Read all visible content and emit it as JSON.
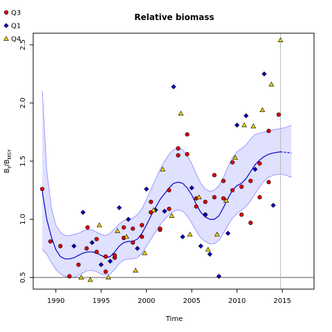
{
  "chart_data": {
    "type": "scatter",
    "title": "Relative biomass",
    "xlabel": "Time",
    "ylabel_main": "B",
    "ylabel_sub1": "t",
    "ylabel_sep": "/B",
    "ylabel_sub2": "MSY",
    "xlim": [
      1987.5,
      2018.5
    ],
    "ylim": [
      0.4,
      2.6
    ],
    "xticks": [
      1990,
      1995,
      2000,
      2005,
      2010,
      2015
    ],
    "yticks": [
      0.5,
      1.0,
      1.5,
      2.0,
      2.5
    ],
    "ytick_labels": [
      "0.5",
      "1.0",
      "1.5",
      "2.0",
      "2.5"
    ],
    "reference_line_y": 0.5,
    "vertical_line_x": 2014.8,
    "grid": false,
    "legend_position": "top-left",
    "colors": {
      "Q3": "#dd0000",
      "Q1": "#0000cc",
      "Q4": "#e8d000",
      "fit_line": "#0000cc",
      "band_fill": "#ccccff",
      "band_edge": "#9999ff",
      "reference": "#555555",
      "vertical": "#bbbbbb"
    },
    "series": [
      {
        "name": "Q3",
        "marker": "circle",
        "x": [
          1988.5,
          1989.4,
          1990.5,
          1991.5,
          1992.5,
          1993.4,
          1994.5,
          1995.5,
          1996.5,
          1997.5,
          1998.5,
          1999.5,
          2000.5,
          2001.5,
          2002.5,
          2003.5,
          2004.5,
          2005.5,
          2006.5,
          2007.5,
          2008.5,
          2009.5,
          2010.5,
          2011.5,
          2012.5,
          2013.5,
          2014.6,
          2013.5,
          2012.5,
          2011.5,
          2010.5,
          2009.5,
          2008.5,
          2007.5,
          2006.5,
          2005.5,
          2004.5,
          2003.5,
          2002.5,
          2001.5,
          2000.5,
          1999.5,
          1998.5,
          1997.5,
          1996.5,
          1995.5,
          1994.5,
          1993.5
        ],
        "y": [
          1.26,
          0.81,
          0.77,
          0.51,
          0.61,
          0.75,
          0.72,
          0.55,
          0.67,
          0.93,
          0.8,
          0.85,
          1.06,
          0.91,
          1.09,
          1.61,
          1.73,
          1.11,
          1.15,
          1.38,
          1.33,
          1.49,
          1.28,
          1.33,
          1.48,
          1.76,
          1.9,
          1.32,
          1.19,
          0.97,
          1.04,
          1.25,
          1.18,
          1.19,
          1.04,
          1.18,
          1.56,
          1.55,
          1.25,
          0.92,
          1.15,
          0.95,
          0.92,
          0.84,
          0.69,
          0.68,
          0.83,
          0.93
        ]
      },
      {
        "name": "Q1",
        "marker": "diamond",
        "x": [
          1992.0,
          1993.0,
          1994.0,
          1995.0,
          1996.0,
          1997.0,
          1998.0,
          1999.0,
          2000.0,
          2001.0,
          2002.0,
          2003.0,
          2004.0,
          2005.0,
          2006.0,
          2007.0,
          2008.0,
          2009.0,
          2010.0,
          2011.0,
          2012.0,
          2013.0,
          2014.0,
          2006.5,
          2001.0
        ],
        "y": [
          0.77,
          1.06,
          0.8,
          0.61,
          0.64,
          1.1,
          1.0,
          0.75,
          1.26,
          1.08,
          1.07,
          2.14,
          0.85,
          1.27,
          0.77,
          0.7,
          0.51,
          0.88,
          1.81,
          1.89,
          1.43,
          2.25,
          1.12,
          1.04,
          1.08
        ]
      },
      {
        "name": "Q4",
        "marker": "triangle",
        "x": [
          1992.8,
          1993.8,
          1994.8,
          1995.8,
          1996.8,
          1997.8,
          1998.8,
          1999.8,
          2000.8,
          2001.8,
          2002.8,
          2003.8,
          2004.8,
          2005.8,
          2006.8,
          2007.8,
          2008.8,
          2009.8,
          2010.8,
          2011.8,
          2012.8,
          2013.8,
          2014.8
        ],
        "y": [
          0.5,
          0.48,
          0.95,
          0.5,
          0.9,
          0.85,
          0.56,
          0.71,
          1.08,
          1.43,
          1.03,
          1.91,
          0.87,
          1.19,
          0.74,
          0.87,
          1.16,
          1.53,
          1.81,
          1.8,
          1.94,
          2.16,
          2.54
        ]
      }
    ],
    "fit": {
      "x": [
        1988.5,
        1989.0,
        1989.5,
        1990.0,
        1990.5,
        1991.0,
        1991.5,
        1992.0,
        1992.5,
        1993.0,
        1993.5,
        1994.0,
        1994.5,
        1995.0,
        1995.5,
        1996.0,
        1996.5,
        1997.0,
        1997.5,
        1998.0,
        1998.5,
        1999.0,
        1999.5,
        2000.0,
        2000.5,
        2001.0,
        2001.5,
        2002.0,
        2002.5,
        2003.0,
        2003.5,
        2004.0,
        2004.5,
        2005.0,
        2005.5,
        2006.0,
        2006.5,
        2007.0,
        2007.5,
        2008.0,
        2008.5,
        2009.0,
        2009.5,
        2010.0,
        2010.5,
        2011.0,
        2011.5,
        2012.0,
        2012.5,
        2013.0,
        2013.5,
        2014.0,
        2014.8
      ],
      "y": [
        1.24,
        1.0,
        0.85,
        0.74,
        0.68,
        0.66,
        0.66,
        0.67,
        0.69,
        0.71,
        0.72,
        0.72,
        0.71,
        0.69,
        0.67,
        0.68,
        0.72,
        0.77,
        0.8,
        0.81,
        0.81,
        0.83,
        0.88,
        0.95,
        1.03,
        1.1,
        1.17,
        1.22,
        1.27,
        1.31,
        1.32,
        1.31,
        1.27,
        1.21,
        1.13,
        1.06,
        1.02,
        1.0,
        1.0,
        1.03,
        1.1,
        1.18,
        1.25,
        1.29,
        1.31,
        1.35,
        1.41,
        1.47,
        1.51,
        1.54,
        1.56,
        1.57,
        1.58
      ],
      "upper": [
        2.1,
        1.42,
        1.1,
        0.95,
        0.89,
        0.86,
        0.86,
        0.87,
        0.88,
        0.9,
        0.91,
        0.91,
        0.89,
        0.87,
        0.86,
        0.88,
        0.92,
        0.96,
        0.99,
        1.0,
        1.01,
        1.04,
        1.09,
        1.17,
        1.26,
        1.34,
        1.43,
        1.5,
        1.56,
        1.6,
        1.61,
        1.6,
        1.55,
        1.48,
        1.39,
        1.31,
        1.26,
        1.24,
        1.25,
        1.29,
        1.36,
        1.45,
        1.53,
        1.58,
        1.61,
        1.64,
        1.69,
        1.73,
        1.74,
        1.75,
        1.76,
        1.77,
        1.78
      ],
      "lower": [
        0.74,
        0.7,
        0.63,
        0.57,
        0.53,
        0.51,
        0.5,
        0.5,
        0.52,
        0.54,
        0.56,
        0.56,
        0.55,
        0.53,
        0.52,
        0.53,
        0.57,
        0.62,
        0.65,
        0.66,
        0.66,
        0.67,
        0.71,
        0.77,
        0.83,
        0.89,
        0.95,
        1.0,
        1.04,
        1.07,
        1.08,
        1.07,
        1.03,
        0.97,
        0.9,
        0.84,
        0.81,
        0.79,
        0.79,
        0.82,
        0.88,
        0.95,
        1.01,
        1.05,
        1.08,
        1.11,
        1.16,
        1.22,
        1.28,
        1.33,
        1.36,
        1.38,
        1.39
      ],
      "projection_x": [
        2014.8,
        2015.4,
        2016.0
      ],
      "projection_y": [
        1.58,
        1.575,
        1.57
      ],
      "projection_upper": [
        1.78,
        1.79,
        1.81
      ],
      "projection_lower": [
        1.39,
        1.38,
        1.36
      ]
    }
  }
}
